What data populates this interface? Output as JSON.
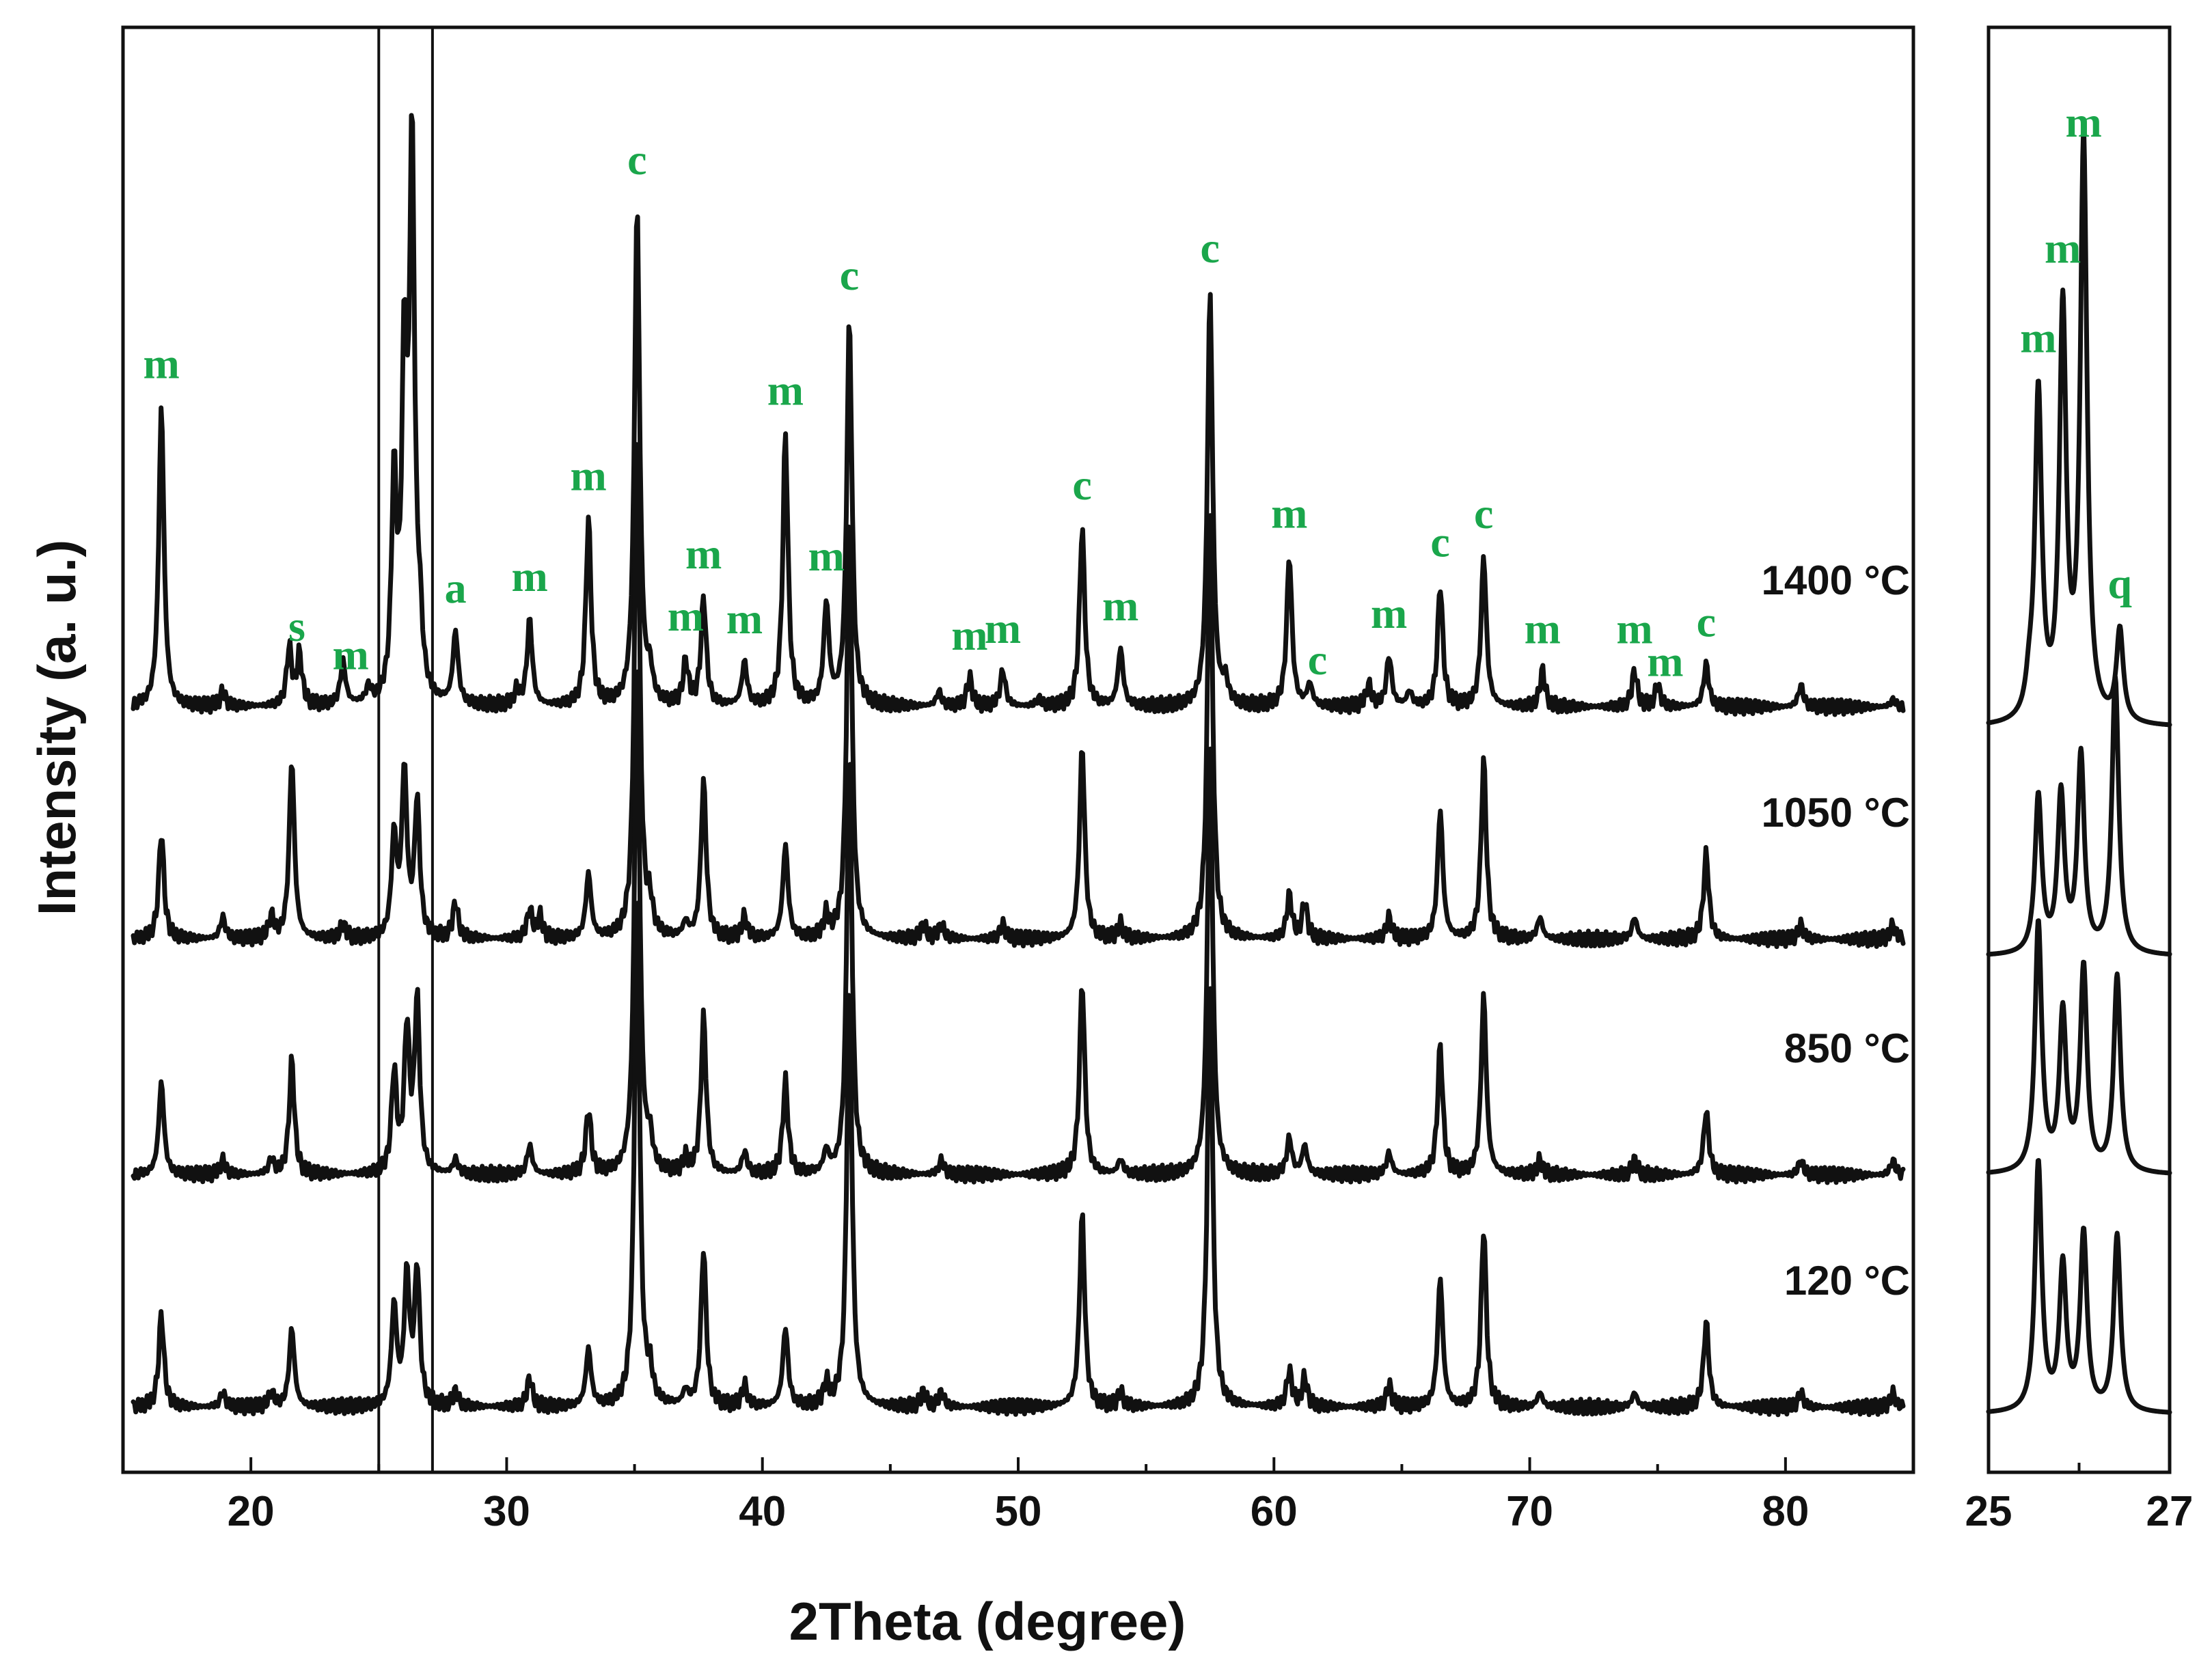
{
  "chart_data": [
    {
      "type": "line",
      "panel": "main",
      "xlabel": "2Theta (degree)",
      "ylabel": "Intensity (a. u.)",
      "xlim": [
        15,
        85
      ],
      "x_ticks": [
        "20",
        "30",
        "40",
        "50",
        "60",
        "70",
        "80"
      ],
      "y_ticks": [],
      "grid": false,
      "legend": "none",
      "reference_lines_x": [
        25,
        27.1
      ],
      "series": [
        {
          "name": "1400 °C",
          "baseline": 0,
          "peaks": [
            {
              "x": 16.5,
              "h": 0.42
            },
            {
              "x": 18.9,
              "h": 0.02
            },
            {
              "x": 21.5,
              "h": 0.08
            },
            {
              "x": 21.9,
              "h": 0.07
            },
            {
              "x": 23.6,
              "h": 0.06
            },
            {
              "x": 24.6,
              "h": 0.02
            },
            {
              "x": 25.6,
              "h": 0.3
            },
            {
              "x": 26.0,
              "h": 0.45
            },
            {
              "x": 26.3,
              "h": 0.76
            },
            {
              "x": 26.6,
              "h": 0.08
            },
            {
              "x": 28.0,
              "h": 0.1
            },
            {
              "x": 30.4,
              "h": 0.02
            },
            {
              "x": 30.9,
              "h": 0.12
            },
            {
              "x": 33.2,
              "h": 0.26
            },
            {
              "x": 35.1,
              "h": 0.7
            },
            {
              "x": 35.6,
              "h": 0.04
            },
            {
              "x": 37.0,
              "h": 0.06
            },
            {
              "x": 37.7,
              "h": 0.15
            },
            {
              "x": 39.3,
              "h": 0.06
            },
            {
              "x": 40.9,
              "h": 0.38
            },
            {
              "x": 42.5,
              "h": 0.14
            },
            {
              "x": 43.4,
              "h": 0.54
            },
            {
              "x": 46.9,
              "h": 0.02
            },
            {
              "x": 48.1,
              "h": 0.04
            },
            {
              "x": 49.4,
              "h": 0.05
            },
            {
              "x": 50.8,
              "h": 0.01
            },
            {
              "x": 52.5,
              "h": 0.25
            },
            {
              "x": 54.0,
              "h": 0.08
            },
            {
              "x": 57.5,
              "h": 0.58
            },
            {
              "x": 58.1,
              "h": 0.03
            },
            {
              "x": 60.6,
              "h": 0.21
            },
            {
              "x": 61.4,
              "h": 0.03
            },
            {
              "x": 63.7,
              "h": 0.03
            },
            {
              "x": 64.5,
              "h": 0.07
            },
            {
              "x": 65.3,
              "h": 0.02
            },
            {
              "x": 66.5,
              "h": 0.17
            },
            {
              "x": 68.2,
              "h": 0.21
            },
            {
              "x": 70.5,
              "h": 0.05
            },
            {
              "x": 74.1,
              "h": 0.05
            },
            {
              "x": 75.0,
              "h": 0.03
            },
            {
              "x": 76.9,
              "h": 0.06
            },
            {
              "x": 80.6,
              "h": 0.03
            },
            {
              "x": 84.2,
              "h": 0.01
            }
          ]
        },
        {
          "name": "1050 °C",
          "baseline": 0,
          "peaks": [
            {
              "x": 16.5,
              "h": 0.15
            },
            {
              "x": 18.9,
              "h": 0.03
            },
            {
              "x": 20.8,
              "h": 0.03
            },
            {
              "x": 21.6,
              "h": 0.25
            },
            {
              "x": 23.6,
              "h": 0.02
            },
            {
              "x": 25.6,
              "h": 0.14
            },
            {
              "x": 26.0,
              "h": 0.23
            },
            {
              "x": 26.5,
              "h": 0.19
            },
            {
              "x": 28.0,
              "h": 0.05
            },
            {
              "x": 30.9,
              "h": 0.04
            },
            {
              "x": 31.3,
              "h": 0.03
            },
            {
              "x": 33.2,
              "h": 0.09
            },
            {
              "x": 35.1,
              "h": 0.72
            },
            {
              "x": 35.6,
              "h": 0.04
            },
            {
              "x": 37.0,
              "h": 0.02
            },
            {
              "x": 37.7,
              "h": 0.22
            },
            {
              "x": 39.3,
              "h": 0.03
            },
            {
              "x": 40.9,
              "h": 0.13
            },
            {
              "x": 42.5,
              "h": 0.03
            },
            {
              "x": 43.4,
              "h": 0.59
            },
            {
              "x": 46.3,
              "h": 0.02
            },
            {
              "x": 47.0,
              "h": 0.02
            },
            {
              "x": 49.4,
              "h": 0.02
            },
            {
              "x": 52.5,
              "h": 0.27
            },
            {
              "x": 54.0,
              "h": 0.02
            },
            {
              "x": 57.5,
              "h": 0.6
            },
            {
              "x": 60.6,
              "h": 0.06
            },
            {
              "x": 61.2,
              "h": 0.05
            },
            {
              "x": 64.5,
              "h": 0.03
            },
            {
              "x": 66.5,
              "h": 0.18
            },
            {
              "x": 68.2,
              "h": 0.25
            },
            {
              "x": 70.4,
              "h": 0.03
            },
            {
              "x": 74.1,
              "h": 0.03
            },
            {
              "x": 76.9,
              "h": 0.12
            },
            {
              "x": 80.6,
              "h": 0.02
            },
            {
              "x": 84.2,
              "h": 0.02
            }
          ]
        },
        {
          "name": "850 °C",
          "baseline": 0,
          "peaks": [
            {
              "x": 16.5,
              "h": 0.13
            },
            {
              "x": 18.9,
              "h": 0.02
            },
            {
              "x": 20.8,
              "h": 0.02
            },
            {
              "x": 21.6,
              "h": 0.16
            },
            {
              "x": 25.6,
              "h": 0.14
            },
            {
              "x": 26.1,
              "h": 0.2
            },
            {
              "x": 26.5,
              "h": 0.24
            },
            {
              "x": 28.0,
              "h": 0.02
            },
            {
              "x": 30.9,
              "h": 0.04
            },
            {
              "x": 33.2,
              "h": 0.09
            },
            {
              "x": 35.1,
              "h": 0.72
            },
            {
              "x": 35.6,
              "h": 0.04
            },
            {
              "x": 37.0,
              "h": 0.02
            },
            {
              "x": 37.7,
              "h": 0.22
            },
            {
              "x": 39.3,
              "h": 0.03
            },
            {
              "x": 40.9,
              "h": 0.13
            },
            {
              "x": 42.5,
              "h": 0.03
            },
            {
              "x": 43.4,
              "h": 0.59
            },
            {
              "x": 47.0,
              "h": 0.02
            },
            {
              "x": 52.5,
              "h": 0.27
            },
            {
              "x": 54.0,
              "h": 0.02
            },
            {
              "x": 57.5,
              "h": 0.6
            },
            {
              "x": 60.6,
              "h": 0.05
            },
            {
              "x": 61.2,
              "h": 0.04
            },
            {
              "x": 64.5,
              "h": 0.03
            },
            {
              "x": 66.5,
              "h": 0.18
            },
            {
              "x": 68.2,
              "h": 0.25
            },
            {
              "x": 70.4,
              "h": 0.02
            },
            {
              "x": 74.1,
              "h": 0.02
            },
            {
              "x": 76.9,
              "h": 0.09
            },
            {
              "x": 80.6,
              "h": 0.02
            },
            {
              "x": 84.2,
              "h": 0.02
            }
          ]
        },
        {
          "name": "120 °C",
          "baseline": 0,
          "peaks": [
            {
              "x": 16.5,
              "h": 0.13
            },
            {
              "x": 18.9,
              "h": 0.02
            },
            {
              "x": 20.8,
              "h": 0.02
            },
            {
              "x": 21.6,
              "h": 0.11
            },
            {
              "x": 25.6,
              "h": 0.14
            },
            {
              "x": 26.1,
              "h": 0.18
            },
            {
              "x": 26.5,
              "h": 0.19
            },
            {
              "x": 28.0,
              "h": 0.02
            },
            {
              "x": 30.9,
              "h": 0.04
            },
            {
              "x": 33.2,
              "h": 0.08
            },
            {
              "x": 35.1,
              "h": 0.72
            },
            {
              "x": 35.6,
              "h": 0.04
            },
            {
              "x": 37.0,
              "h": 0.02
            },
            {
              "x": 37.7,
              "h": 0.22
            },
            {
              "x": 39.3,
              "h": 0.03
            },
            {
              "x": 40.9,
              "h": 0.11
            },
            {
              "x": 42.5,
              "h": 0.03
            },
            {
              "x": 43.4,
              "h": 0.59
            },
            {
              "x": 46.3,
              "h": 0.02
            },
            {
              "x": 47.0,
              "h": 0.02
            },
            {
              "x": 52.5,
              "h": 0.27
            },
            {
              "x": 54.0,
              "h": 0.02
            },
            {
              "x": 57.5,
              "h": 0.6
            },
            {
              "x": 60.6,
              "h": 0.05
            },
            {
              "x": 61.2,
              "h": 0.04
            },
            {
              "x": 64.5,
              "h": 0.03
            },
            {
              "x": 66.5,
              "h": 0.18
            },
            {
              "x": 68.2,
              "h": 0.25
            },
            {
              "x": 70.4,
              "h": 0.02
            },
            {
              "x": 74.1,
              "h": 0.02
            },
            {
              "x": 76.9,
              "h": 0.12
            },
            {
              "x": 80.6,
              "h": 0.02
            },
            {
              "x": 84.2,
              "h": 0.02
            }
          ]
        }
      ],
      "annotations": [
        {
          "text": "m",
          "x": 16.5
        },
        {
          "text": "s",
          "x": 21.8
        },
        {
          "text": "m",
          "x": 23.9
        },
        {
          "text": "a",
          "x": 28.0
        },
        {
          "text": "m",
          "x": 30.9
        },
        {
          "text": "m",
          "x": 33.2
        },
        {
          "text": "c",
          "x": 35.1
        },
        {
          "text": "m",
          "x": 37.0
        },
        {
          "text": "m",
          "x": 37.7
        },
        {
          "text": "m",
          "x": 39.3
        },
        {
          "text": "m",
          "x": 40.9
        },
        {
          "text": "m",
          "x": 42.5
        },
        {
          "text": "c",
          "x": 43.4
        },
        {
          "text": "m",
          "x": 48.1
        },
        {
          "text": "m",
          "x": 49.4
        },
        {
          "text": "c",
          "x": 52.5
        },
        {
          "text": "m",
          "x": 54.0
        },
        {
          "text": "c",
          "x": 57.5
        },
        {
          "text": "m",
          "x": 60.6
        },
        {
          "text": "c",
          "x": 61.7
        },
        {
          "text": "m",
          "x": 64.5
        },
        {
          "text": "c",
          "x": 66.5
        },
        {
          "text": "c",
          "x": 68.2
        },
        {
          "text": "m",
          "x": 70.5
        },
        {
          "text": "m",
          "x": 74.1
        },
        {
          "text": "m",
          "x": 75.3
        },
        {
          "text": "c",
          "x": 76.9
        }
      ]
    },
    {
      "type": "line",
      "panel": "zoom",
      "xlim": [
        25,
        27
      ],
      "x_ticks": [
        "25",
        "27"
      ],
      "grid": false,
      "legend": "none",
      "series": [
        {
          "name": "1400 °C",
          "peaks": [
            {
              "x": 25.45,
              "h": 0.04
            },
            {
              "x": 25.55,
              "h": 0.5
            },
            {
              "x": 25.82,
              "h": 0.62
            },
            {
              "x": 26.05,
              "h": 0.88
            },
            {
              "x": 26.45,
              "h": 0.14
            }
          ]
        },
        {
          "name": "1050 °C",
          "peaks": [
            {
              "x": 25.55,
              "h": 0.24
            },
            {
              "x": 25.8,
              "h": 0.24
            },
            {
              "x": 26.02,
              "h": 0.3
            },
            {
              "x": 26.4,
              "h": 0.42
            }
          ]
        },
        {
          "name": "850 °C",
          "peaks": [
            {
              "x": 25.55,
              "h": 0.38
            },
            {
              "x": 25.82,
              "h": 0.24
            },
            {
              "x": 26.05,
              "h": 0.31
            },
            {
              "x": 26.42,
              "h": 0.3
            }
          ]
        },
        {
          "name": "120 °C",
          "peaks": [
            {
              "x": 25.55,
              "h": 0.38
            },
            {
              "x": 25.82,
              "h": 0.22
            },
            {
              "x": 26.05,
              "h": 0.27
            },
            {
              "x": 26.42,
              "h": 0.27
            }
          ]
        }
      ],
      "annotations": [
        {
          "text": "m",
          "x": 25.55
        },
        {
          "text": "m",
          "x": 25.82
        },
        {
          "text": "m",
          "x": 26.05
        },
        {
          "text": "q",
          "x": 26.45
        }
      ]
    }
  ]
}
